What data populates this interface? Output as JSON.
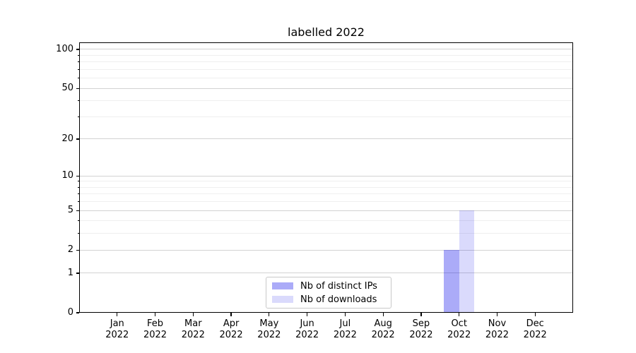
{
  "figure_title": "labelled 2022",
  "chart_data": {
    "type": "bar",
    "title": "labelled 2022",
    "categories": [
      "Jan",
      "Feb",
      "Mar",
      "Apr",
      "May",
      "Jun",
      "Jul",
      "Aug",
      "Sep",
      "Oct",
      "Nov",
      "Dec"
    ],
    "category_year": "2022",
    "series": [
      {
        "name": "Nb of distinct IPs",
        "color": "rgba(10,10,235,0.34)",
        "values": [
          0,
          0,
          0,
          0,
          0,
          0,
          0,
          0,
          0,
          2,
          0,
          0
        ]
      },
      {
        "name": "Nb of downloads",
        "color": "rgba(10,10,235,0.15)",
        "values": [
          0,
          0,
          0,
          0,
          0,
          0,
          0,
          0,
          0,
          5,
          0,
          0
        ]
      }
    ],
    "xlabel": "",
    "ylabel": "",
    "y_scale": "log1p",
    "ylim": [
      0,
      113.3
    ],
    "y_major_ticks": [
      0,
      1,
      2,
      5,
      10,
      20,
      50,
      100
    ],
    "y_major_tick_labels": [
      "0",
      "1",
      "2",
      "5",
      "10",
      "20",
      "50",
      "100"
    ],
    "y_minor_gridlines": [
      3,
      4,
      6,
      7,
      8,
      9,
      30,
      40,
      60,
      70,
      80,
      90
    ],
    "grid": "on",
    "legend_position": "lower center"
  },
  "colors": {
    "grid_major": "#d2d2d2",
    "grid_minor": "#efefef",
    "spine": "#000000",
    "text": "#000000",
    "background": "#ffffff"
  }
}
